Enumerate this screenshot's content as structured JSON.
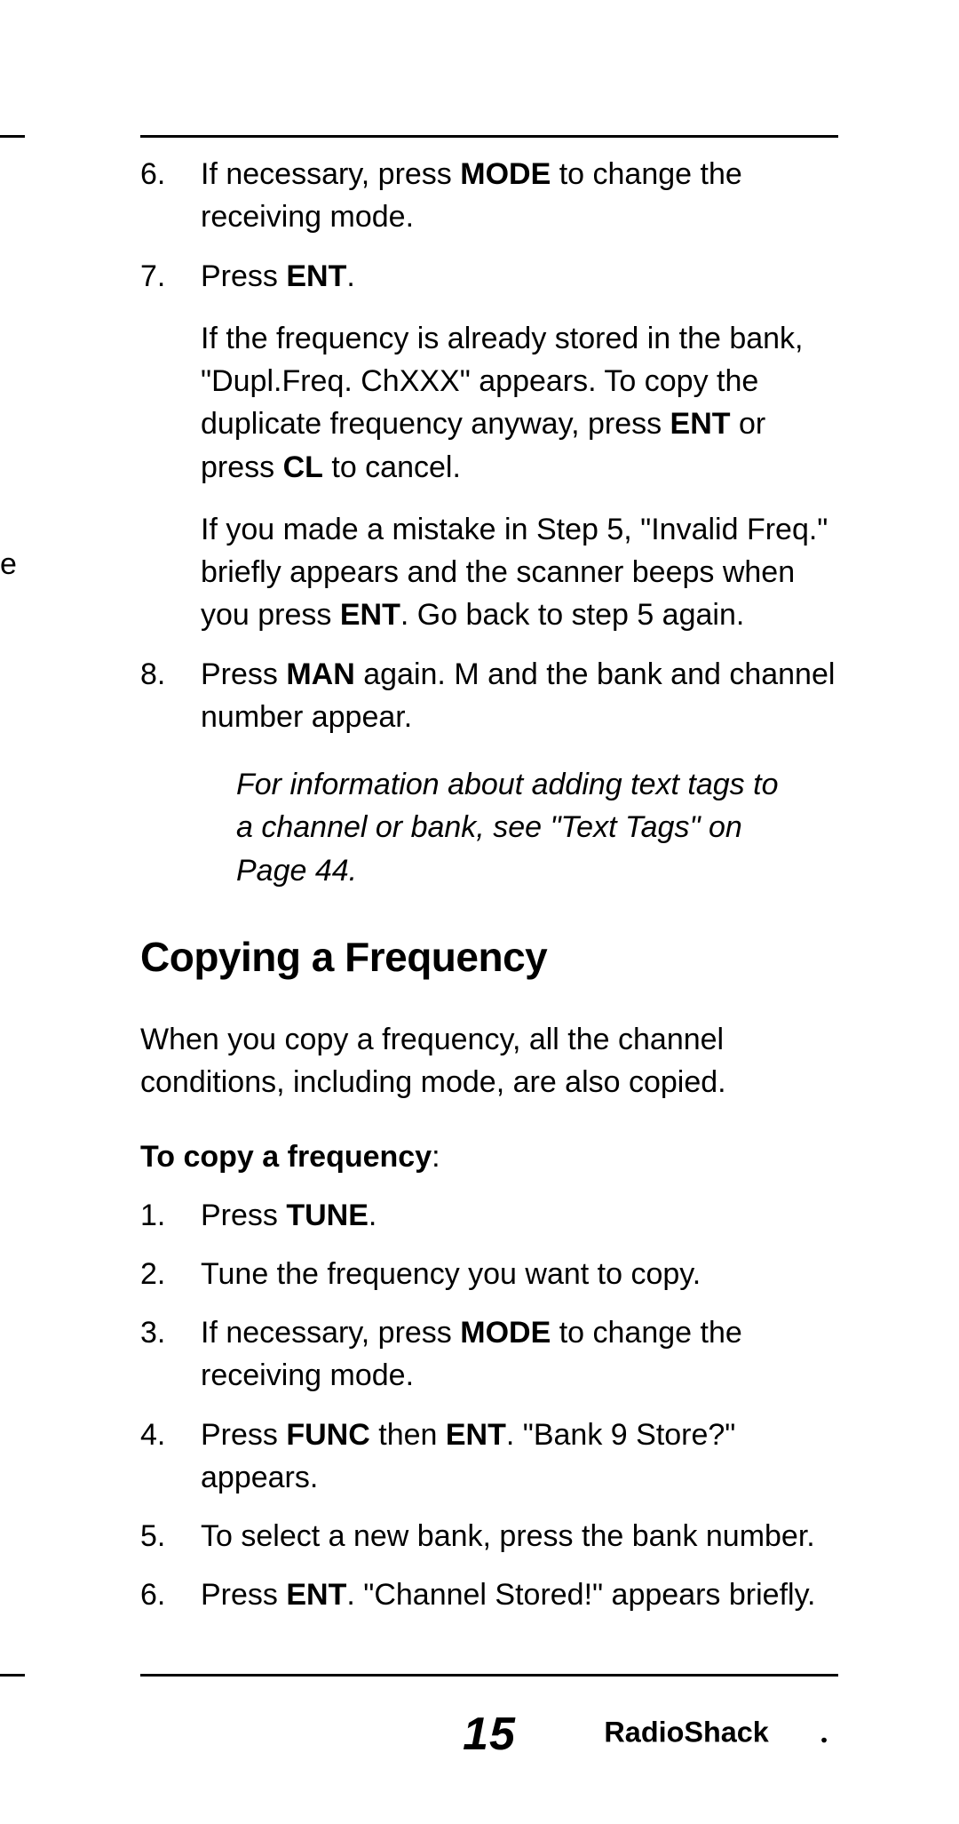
{
  "page_number": "15",
  "brand": "RadioShack",
  "cut_off_left": "e",
  "list_top": [
    {
      "num": "6.",
      "runs": [
        {
          "t": "If necessary, press "
        },
        {
          "t": "MODE",
          "b": true
        },
        {
          "t": " to change the receiving mode."
        }
      ]
    },
    {
      "num": "7.",
      "paragraphs": [
        [
          {
            "t": "Press "
          },
          {
            "t": "ENT",
            "b": true
          },
          {
            "t": "."
          }
        ],
        [
          {
            "t": "If the frequency is already stored in the bank, \"Dupl.Freq. ChXXX\" appears. To copy the duplicate frequency anyway, press "
          },
          {
            "t": "ENT",
            "b": true
          },
          {
            "t": " or press "
          },
          {
            "t": "CL",
            "b": true
          },
          {
            "t": " to cancel."
          }
        ],
        [
          {
            "t": "If you made a mistake in Step 5, \"Invalid Freq.\" briefly appears and the scanner beeps when you press "
          },
          {
            "t": "ENT",
            "b": true
          },
          {
            "t": ". Go back to step 5 again."
          }
        ]
      ]
    },
    {
      "num": "8.",
      "runs": [
        {
          "t": "Press "
        },
        {
          "t": "MAN",
          "b": true
        },
        {
          "t": " again. M and the bank and channel number appear."
        }
      ]
    }
  ],
  "note": "For information about adding text tags to a channel or bank, see \"Text Tags\" on Page 44.",
  "section_heading": "Copying a Frequency",
  "intro_para": "When you copy a frequency, all the channel conditions, including mode, are also copied.",
  "subhead_bold": "To copy a frequency",
  "subhead_tail": ":",
  "list_bottom": [
    {
      "num": "1.",
      "runs": [
        {
          "t": "Press "
        },
        {
          "t": "TUNE",
          "b": true
        },
        {
          "t": "."
        }
      ]
    },
    {
      "num": "2.",
      "runs": [
        {
          "t": "Tune the frequency you want to copy."
        }
      ]
    },
    {
      "num": "3.",
      "runs": [
        {
          "t": "If necessary, press "
        },
        {
          "t": "MODE",
          "b": true
        },
        {
          "t": " to change the receiving mode."
        }
      ]
    },
    {
      "num": "4.",
      "runs": [
        {
          "t": "Press "
        },
        {
          "t": "FUNC",
          "b": true
        },
        {
          "t": " then "
        },
        {
          "t": "ENT",
          "b": true
        },
        {
          "t": ". \"Bank 9 Store?\" appears."
        }
      ]
    },
    {
      "num": "5.",
      "runs": [
        {
          "t": "To select a new bank, press the bank number."
        }
      ]
    },
    {
      "num": "6.",
      "runs": [
        {
          "t": "Press "
        },
        {
          "t": "ENT",
          "b": true
        },
        {
          "t": ". \"Channel Stored!\" appears briefly."
        }
      ]
    }
  ]
}
